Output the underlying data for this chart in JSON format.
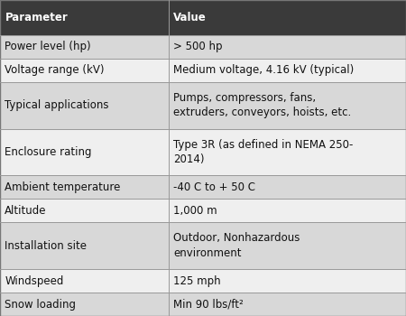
{
  "headers": [
    "Parameter",
    "Value"
  ],
  "rows": [
    [
      "Power level (hp)",
      "> 500 hp"
    ],
    [
      "Voltage range (kV)",
      "Medium voltage, 4.16 kV (typical)"
    ],
    [
      "Typical applications",
      "Pumps, compressors, fans,\nextruders, conveyors, hoists, etc."
    ],
    [
      "Enclosure rating",
      "Type 3R (as defined in NEMA 250-\n2014)"
    ],
    [
      "Ambient temperature",
      "-40 C to + 50 C"
    ],
    [
      "Altitude",
      "1,000 m"
    ],
    [
      "Installation site",
      "Outdoor, Nonhazardous\nenvironment"
    ],
    [
      "Windspeed",
      "125 mph"
    ],
    [
      "Snow loading",
      "Min 90 lbs/ft²"
    ]
  ],
  "header_bg": "#3a3a3a",
  "header_fg": "#ffffff",
  "row_bg_odd": "#d8d8d8",
  "row_bg_even": "#efefef",
  "border_color": "#999999",
  "font_size": 8.5,
  "header_font_size": 8.5,
  "col_split": 0.415,
  "line_counts": [
    1,
    1,
    2,
    2,
    1,
    1,
    2,
    1,
    1
  ],
  "header_line_count": 1.5
}
